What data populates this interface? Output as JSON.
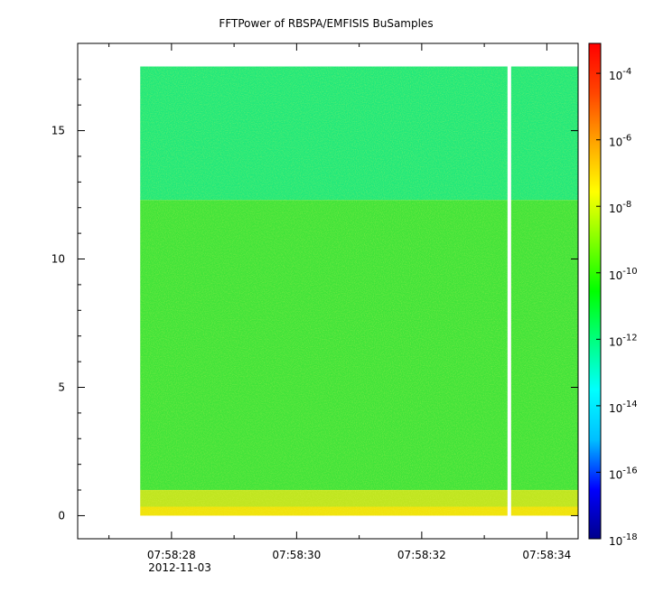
{
  "chart_data": {
    "type": "heatmap",
    "title": "FFTPower of RBSPA/EMFISIS  BuSamples",
    "x_date_label": "2012-11-03",
    "x_tick_labels": [
      "07:58:28",
      "07:58:30",
      "07:58:32",
      "07:58:34"
    ],
    "x_tick_values_s": [
      28,
      30,
      32,
      34
    ],
    "x_minor_tick_values_s": [
      27,
      29,
      31,
      33
    ],
    "xlim_s": [
      26.5,
      34.5
    ],
    "data_start_s": 27.5,
    "gap_s": 33.4,
    "y_tick_labels": [
      "0",
      "5",
      "10",
      "15"
    ],
    "y_tick_values": [
      0,
      5,
      10,
      15
    ],
    "ylim": [
      -0.9,
      18.4
    ],
    "data_ylim": [
      0,
      17.5
    ],
    "colorbar": {
      "scale": "log",
      "range_exp": [
        -18,
        -3.1
      ],
      "tick_exps": [
        -18,
        -16,
        -14,
        -12,
        -10,
        -8,
        -6,
        -4
      ],
      "tick_labels": [
        "10",
        "10",
        "10",
        "10",
        "10",
        "10",
        "10",
        "10"
      ],
      "tick_sups": [
        "-18",
        "-16",
        "-14",
        "-12",
        "-10",
        "-8",
        "-6",
        "-4"
      ],
      "colors": [
        "#00008b",
        "#0000ff",
        "#00bfff",
        "#00ffff",
        "#00ff80",
        "#00ff00",
        "#80ff00",
        "#ffff00",
        "#ffa500",
        "#ff4500",
        "#ff0000"
      ]
    },
    "bands": [
      {
        "y_from": 12.3,
        "y_to": 17.5,
        "log_power": -11.6,
        "color": "#22e87a"
      },
      {
        "y_from": 1.0,
        "y_to": 12.3,
        "log_power": -10.2,
        "color": "#41e33a"
      },
      {
        "y_from": 0.35,
        "y_to": 1.0,
        "log_power": -9.2,
        "color": "#bfe51f"
      },
      {
        "y_from": 0.0,
        "y_to": 0.35,
        "log_power": -8.5,
        "color": "#f1e20a"
      }
    ],
    "grid": false,
    "legend": "colorbar-right"
  }
}
